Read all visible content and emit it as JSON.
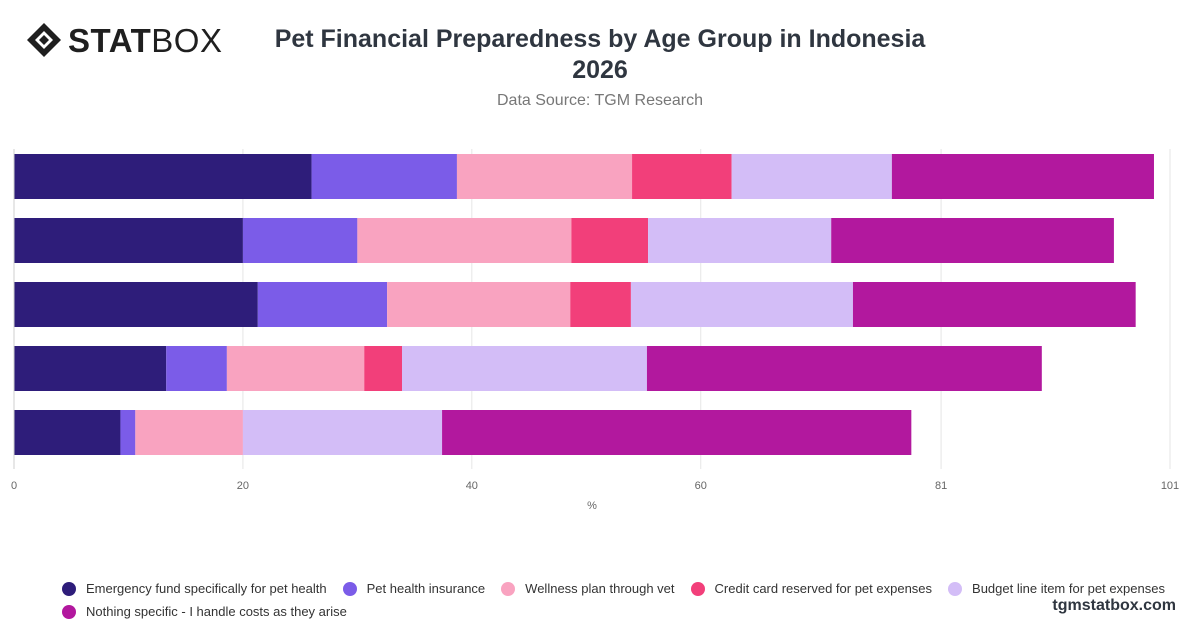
{
  "brand": {
    "part1": "STAT",
    "part2": "BOX",
    "site": "tgmstatbox.com"
  },
  "header": {
    "title_line1": "Pet Financial Preparedness by Age Group in Indonesia",
    "title_line2": "2026",
    "subtitle": "Data Source: TGM Research"
  },
  "chart_data": {
    "type": "bar",
    "orientation": "horizontal",
    "stacked": true,
    "xlabel": "%",
    "xlim": [
      0,
      101
    ],
    "ticks": [
      "0",
      "20",
      "40",
      "60",
      "81",
      "101"
    ],
    "tick_values": [
      0,
      20,
      40,
      60,
      81,
      101
    ],
    "grid": true,
    "legend_position": "bottom",
    "categories": [
      "",
      "",
      "",
      "",
      ""
    ],
    "series": [
      {
        "name": "Emergency fund specifically for pet health",
        "color": "#2e1d7a",
        "values": [
          26,
          20,
          21.3,
          13.3,
          9.3
        ]
      },
      {
        "name": "Pet health insurance",
        "color": "#7b5ce8",
        "values": [
          12.7,
          10,
          11.3,
          5.3,
          1.3
        ]
      },
      {
        "name": "Wellness plan through vet",
        "color": "#f9a3c0",
        "values": [
          15.3,
          18.7,
          16,
          12,
          9.4
        ]
      },
      {
        "name": "Credit card reserved for pet expenses",
        "color": "#f23f7a",
        "values": [
          8.7,
          6.7,
          5.3,
          3.3,
          0
        ]
      },
      {
        "name": "Budget line item for pet expenses",
        "color": "#d3bdf7",
        "values": [
          14,
          16,
          19.4,
          21.4,
          17.4
        ]
      },
      {
        "name": "Nothing specific - I handle costs as they arise",
        "color": "#b2189e",
        "values": [
          22.9,
          24.7,
          24.7,
          34.5,
          41
        ]
      }
    ]
  }
}
